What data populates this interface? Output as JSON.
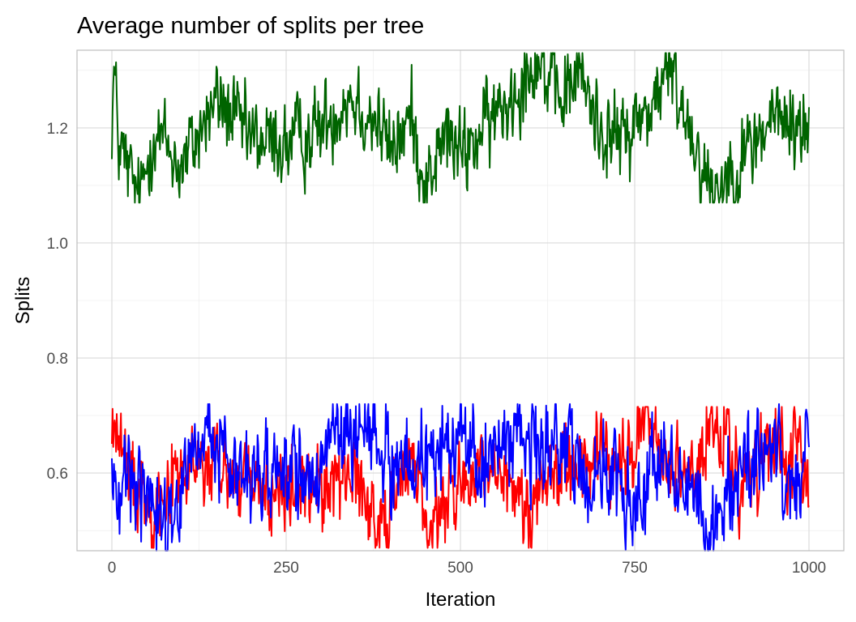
{
  "chart_data": {
    "type": "line",
    "title": "Average number of splits per tree",
    "xlabel": "Iteration",
    "ylabel": "Splits",
    "xlim": [
      -50,
      1050
    ],
    "ylim": [
      0.465,
      1.335
    ],
    "x_ticks": [
      0,
      250,
      500,
      750,
      1000
    ],
    "x_tick_labels": [
      "0",
      "250",
      "500",
      "750",
      "1000"
    ],
    "y_ticks": [
      0.6,
      0.8,
      1.0,
      1.2
    ],
    "y_tick_labels": [
      "0.6",
      "0.8",
      "1.0",
      "1.2"
    ],
    "grid": true,
    "legend": "none",
    "n_iterations": 1000,
    "series": [
      {
        "name": "green",
        "color": "#006400",
        "mean": 1.2,
        "noise": 0.035,
        "min": 1.07,
        "max": 1.33,
        "anchors": [
          [
            0,
            1.21
          ],
          [
            3,
            1.3
          ],
          [
            10,
            1.17
          ],
          [
            40,
            1.07
          ],
          [
            60,
            1.2
          ],
          [
            100,
            1.13
          ],
          [
            150,
            1.25
          ],
          [
            200,
            1.18
          ],
          [
            250,
            1.17
          ],
          [
            300,
            1.2
          ],
          [
            340,
            1.26
          ],
          [
            380,
            1.21
          ],
          [
            400,
            1.16
          ],
          [
            430,
            1.22
          ],
          [
            450,
            1.1
          ],
          [
            480,
            1.19
          ],
          [
            500,
            1.15
          ],
          [
            550,
            1.22
          ],
          [
            580,
            1.27
          ],
          [
            610,
            1.33
          ],
          [
            640,
            1.24
          ],
          [
            670,
            1.3
          ],
          [
            700,
            1.2
          ],
          [
            730,
            1.18
          ],
          [
            770,
            1.23
          ],
          [
            800,
            1.3
          ],
          [
            830,
            1.2
          ],
          [
            860,
            1.09
          ],
          [
            900,
            1.14
          ],
          [
            950,
            1.22
          ],
          [
            980,
            1.2
          ],
          [
            1000,
            1.2
          ]
        ]
      },
      {
        "name": "red",
        "color": "#ff0000",
        "mean": 0.59,
        "noise": 0.035,
        "min": 0.47,
        "max": 0.715,
        "anchors": [
          [
            0,
            0.66
          ],
          [
            5,
            0.69
          ],
          [
            20,
            0.6
          ],
          [
            60,
            0.55
          ],
          [
            100,
            0.6
          ],
          [
            150,
            0.61
          ],
          [
            200,
            0.57
          ],
          [
            250,
            0.56
          ],
          [
            300,
            0.58
          ],
          [
            350,
            0.6
          ],
          [
            380,
            0.51
          ],
          [
            400,
            0.56
          ],
          [
            440,
            0.62
          ],
          [
            450,
            0.49
          ],
          [
            500,
            0.59
          ],
          [
            550,
            0.58
          ],
          [
            600,
            0.55
          ],
          [
            650,
            0.62
          ],
          [
            700,
            0.63
          ],
          [
            740,
            0.61
          ],
          [
            765,
            0.71
          ],
          [
            790,
            0.61
          ],
          [
            830,
            0.6
          ],
          [
            860,
            0.67
          ],
          [
            880,
            0.65
          ],
          [
            900,
            0.57
          ],
          [
            950,
            0.64
          ],
          [
            980,
            0.62
          ],
          [
            1000,
            0.58
          ]
        ]
      },
      {
        "name": "blue",
        "color": "#0000ff",
        "mean": 0.6,
        "noise": 0.04,
        "min": 0.465,
        "max": 0.72,
        "anchors": [
          [
            0,
            0.58
          ],
          [
            50,
            0.59
          ],
          [
            80,
            0.5
          ],
          [
            110,
            0.62
          ],
          [
            140,
            0.66
          ],
          [
            200,
            0.59
          ],
          [
            250,
            0.62
          ],
          [
            300,
            0.59
          ],
          [
            340,
            0.68
          ],
          [
            380,
            0.66
          ],
          [
            420,
            0.6
          ],
          [
            450,
            0.63
          ],
          [
            500,
            0.66
          ],
          [
            530,
            0.62
          ],
          [
            560,
            0.65
          ],
          [
            590,
            0.68
          ],
          [
            620,
            0.64
          ],
          [
            650,
            0.64
          ],
          [
            700,
            0.59
          ],
          [
            730,
            0.57
          ],
          [
            750,
            0.53
          ],
          [
            790,
            0.63
          ],
          [
            820,
            0.57
          ],
          [
            860,
            0.49
          ],
          [
            880,
            0.55
          ],
          [
            900,
            0.6
          ],
          [
            940,
            0.62
          ],
          [
            980,
            0.58
          ],
          [
            1000,
            0.62
          ]
        ]
      }
    ]
  }
}
